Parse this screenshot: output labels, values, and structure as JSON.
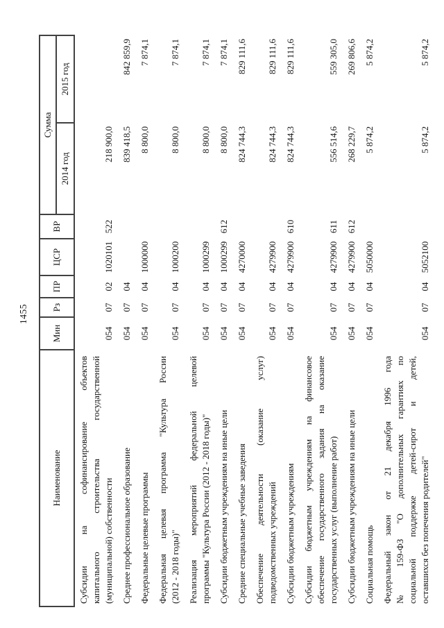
{
  "page": {
    "number": "1455"
  },
  "ink_color": "#141414",
  "grid_color": "#414141",
  "table": {
    "headers": {
      "name": "Наименование",
      "min": "Мин",
      "rz": "Рз",
      "pr": "ПР",
      "csr": "ЦСР",
      "vr": "ВР",
      "sum": "Сумма",
      "y2014": "2014 год",
      "y2015": "2015 год"
    },
    "rows": [
      {
        "name_lines": [
          "Субсидии на софинансирование объектов",
          "капитального строительства государственной",
          "(муниципальной) собственности"
        ],
        "min": "054",
        "rz": "07",
        "pr": "02",
        "csr": "1020101",
        "vr": "522",
        "y2014": "218 900,0",
        "y2015": ""
      },
      {
        "name_lines": [
          "Среднее профессиональное образование"
        ],
        "min": "054",
        "rz": "07",
        "pr": "04",
        "csr": "",
        "vr": "",
        "y2014": "839 418,5",
        "y2015": "842 859,9"
      },
      {
        "name_lines": [
          "Федеральные целевые программы"
        ],
        "min": "054",
        "rz": "07",
        "pr": "04",
        "csr": "1000000",
        "vr": "",
        "y2014": "8 800,0",
        "y2015": "7 874,1"
      },
      {
        "name_lines": [
          "Федеральная целевая программа \"Культура России",
          "(2012 - 2018 годы)\""
        ],
        "min": "054",
        "rz": "07",
        "pr": "04",
        "csr": "1000200",
        "vr": "",
        "y2014": "8 800,0",
        "y2015": "7 874,1"
      },
      {
        "name_lines": [
          "Реализация мероприятий федеральной целевой",
          "программы \"Культура России (2012 - 2018 годы)\""
        ],
        "min": "054",
        "rz": "07",
        "pr": "04",
        "csr": "1000299",
        "vr": "",
        "y2014": "8 800,0",
        "y2015": "7 874,1"
      },
      {
        "name_lines": [
          "Субсидии бюджетным учреждениям на иные цели"
        ],
        "min": "054",
        "rz": "07",
        "pr": "04",
        "csr": "1000299",
        "vr": "612",
        "y2014": "8 800,0",
        "y2015": "7 874,1"
      },
      {
        "name_lines": [
          "Средние специальные учебные заведения"
        ],
        "min": "054",
        "rz": "07",
        "pr": "04",
        "csr": "4270000",
        "vr": "",
        "y2014": "824 744,3",
        "y2015": "829 111,6"
      },
      {
        "name_lines": [
          "Обеспечение деятельности (оказание услуг)",
          "подведомственных учреждений"
        ],
        "min": "054",
        "rz": "07",
        "pr": "04",
        "csr": "4279900",
        "vr": "",
        "y2014": "824 744,3",
        "y2015": "829 111,6"
      },
      {
        "name_lines": [
          "Субсидии бюджетным учреждениям"
        ],
        "min": "054",
        "rz": "07",
        "pr": "04",
        "csr": "4279900",
        "vr": "610",
        "y2014": "824 744,3",
        "y2015": "829 111,6"
      },
      {
        "name_lines": [
          "Субсидии бюджетным учреждениям на финансовое",
          "обеспечение государственного задания на оказание",
          "государственных услуг (выполнение работ)"
        ],
        "min": "054",
        "rz": "07",
        "pr": "04",
        "csr": "4279900",
        "vr": "611",
        "y2014": "556 514,6",
        "y2015": "559 305,0"
      },
      {
        "name_lines": [
          "Субсидии бюджетным учреждениям на иные цели"
        ],
        "min": "054",
        "rz": "07",
        "pr": "04",
        "csr": "4279900",
        "vr": "612",
        "y2014": "268 229,7",
        "y2015": "269 806,6"
      },
      {
        "name_lines": [
          "Социальная помощь"
        ],
        "min": "054",
        "rz": "07",
        "pr": "04",
        "csr": "5050000",
        "vr": "",
        "y2014": "5 874,2",
        "y2015": "5 874,2"
      },
      {
        "name_lines": [
          "Федеральный закон от 21 декабря 1996 года",
          "№ 159-ФЗ \"О дополнительных гарантиях по",
          "социальной поддержке детей-сирот и детей,",
          "оставшихся без попечения родителей\""
        ],
        "min": "054",
        "rz": "07",
        "pr": "04",
        "csr": "5052100",
        "vr": "",
        "y2014": "5 874,2",
        "y2015": "5 874,2"
      }
    ]
  }
}
